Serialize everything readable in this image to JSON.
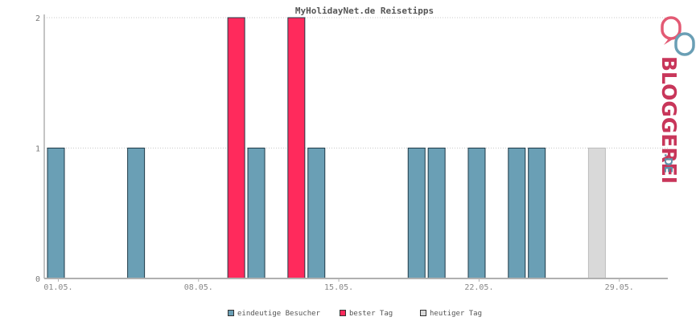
{
  "chart_data": {
    "type": "bar",
    "title": "MyHolidayNet.de Reisetipps",
    "ylim": [
      0,
      2
    ],
    "y_ticks": [
      "0",
      "1",
      "2"
    ],
    "x_tick_labels": [
      "01.05.",
      "08.05.",
      "15.05.",
      "22.05.",
      "29.05."
    ],
    "x_tick_days": [
      1,
      8,
      15,
      22,
      29
    ],
    "days": [
      1,
      2,
      3,
      4,
      5,
      6,
      7,
      8,
      9,
      10,
      11,
      12,
      13,
      14,
      15,
      16,
      17,
      18,
      19,
      20,
      21,
      22,
      23,
      24,
      25,
      26,
      27,
      28,
      29,
      30,
      31
    ],
    "values": [
      1,
      0,
      0,
      0,
      1,
      0,
      0,
      0,
      0,
      2,
      1,
      0,
      2,
      1,
      0,
      0,
      0,
      0,
      1,
      1,
      0,
      1,
      0,
      1,
      1,
      0,
      0,
      1,
      0,
      0,
      0
    ],
    "bar_kind": [
      "visitors",
      "visitors",
      "visitors",
      "visitors",
      "visitors",
      "visitors",
      "visitors",
      "visitors",
      "visitors",
      "best",
      "visitors",
      "visitors",
      "best",
      "visitors",
      "visitors",
      "visitors",
      "visitors",
      "visitors",
      "visitors",
      "visitors",
      "visitors",
      "visitors",
      "visitors",
      "visitors",
      "visitors",
      "visitors",
      "visitors",
      "today",
      "visitors",
      "visitors",
      "visitors"
    ],
    "legend": [
      {
        "key": "visitors",
        "label": "eindeutige Besucher",
        "color": "#6a9fb5"
      },
      {
        "key": "best",
        "label": "bester Tag",
        "color": "#ff2a5c"
      },
      {
        "key": "today",
        "label": "heutiger Tag",
        "color": "#d9d9d9"
      }
    ],
    "grid": true,
    "legend_position": "bottom"
  },
  "logo": {
    "text_main": "BLOGGEREI",
    "text_suffix": ".DE",
    "color_main": "#c8365a",
    "color_suffix": "#5f8fa8"
  }
}
